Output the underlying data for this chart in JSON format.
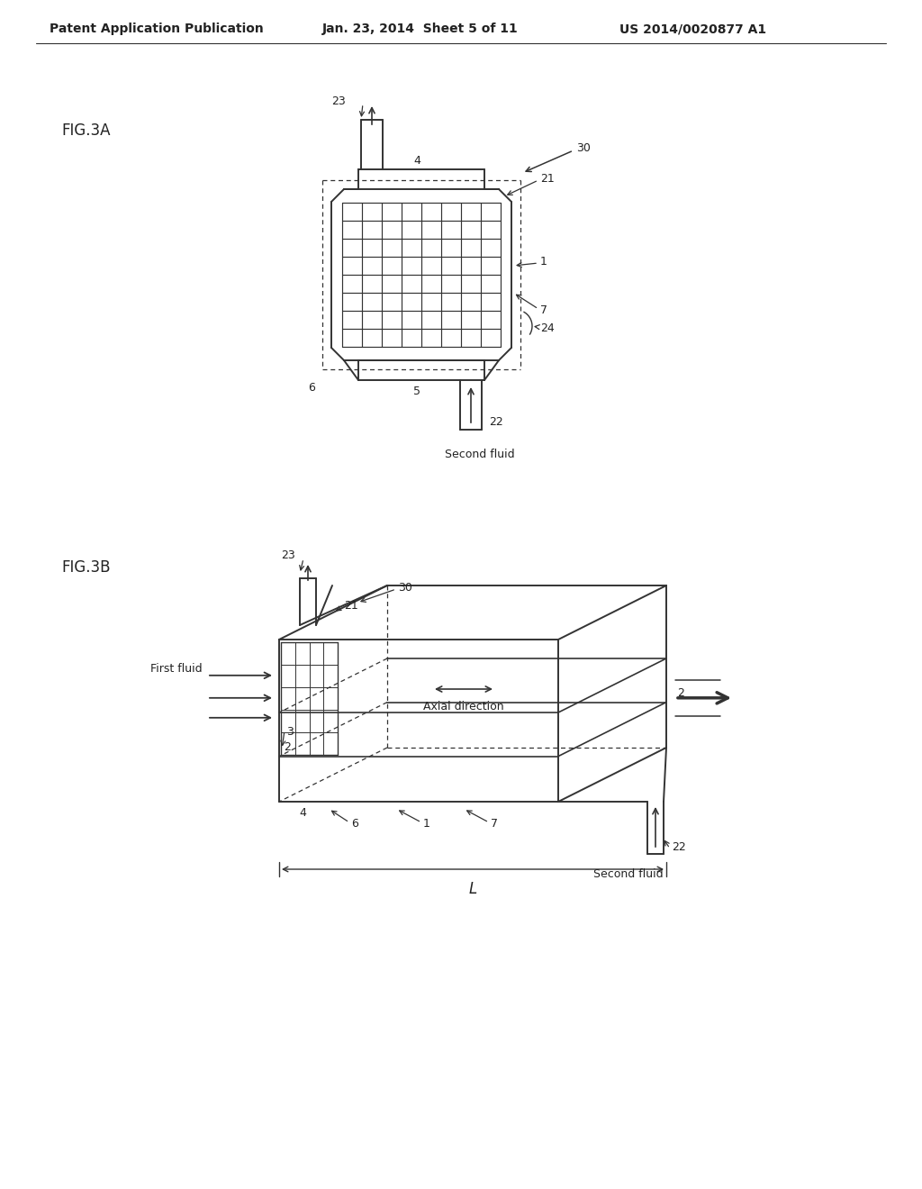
{
  "bg_color": "#ffffff",
  "line_color": "#333333",
  "text_color": "#222222",
  "header_left": "Patent Application Publication",
  "header_mid": "Jan. 23, 2014  Sheet 5 of 11",
  "header_right": "US 2014/0020877 A1",
  "fig3a_label": "FIG.3A",
  "fig3b_label": "FIG.3B"
}
